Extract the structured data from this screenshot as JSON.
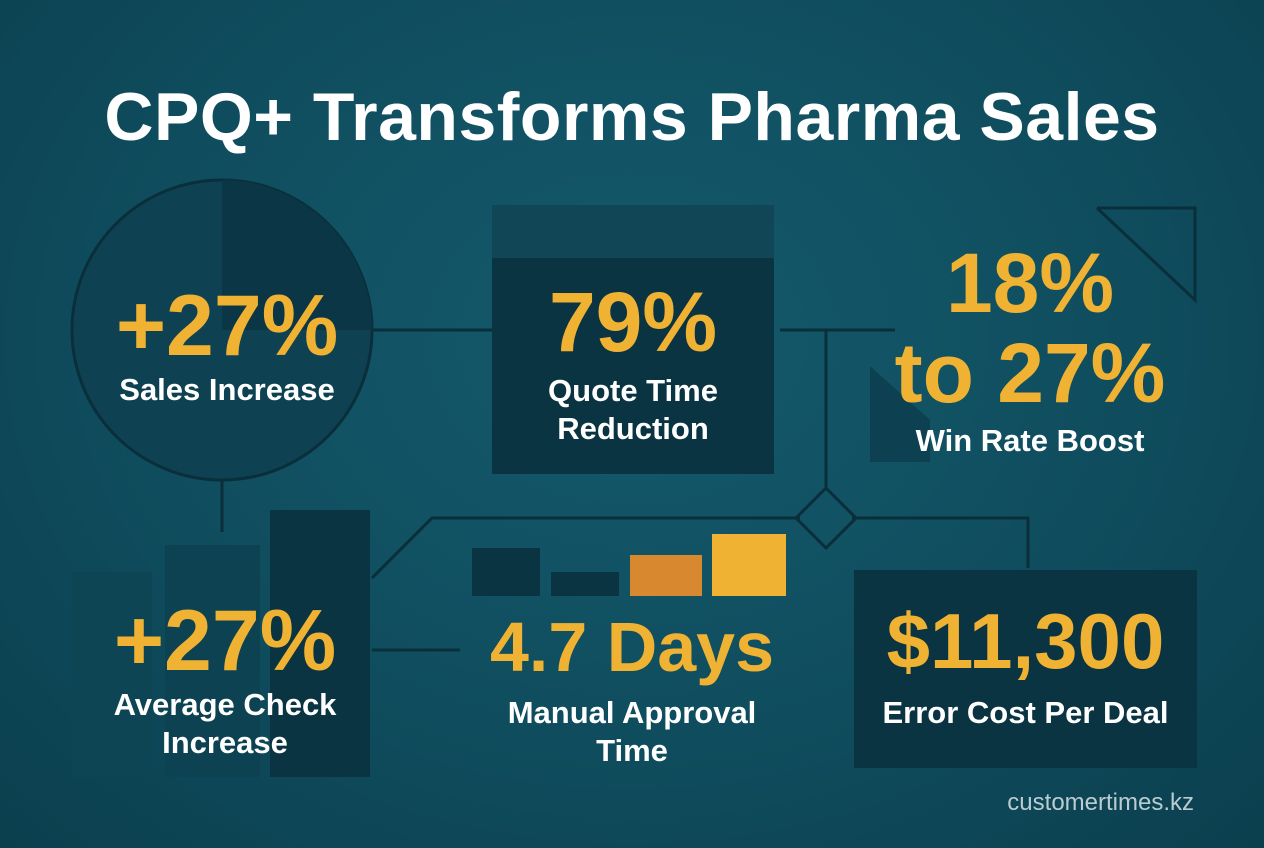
{
  "title": "CPQ+ Transforms Pharma Sales",
  "metrics": {
    "sales": {
      "value": "+27%",
      "label": "Sales Increase"
    },
    "quote": {
      "value": "79%",
      "label_line1": "Quote Time",
      "label_line2": "Reduction"
    },
    "winrate": {
      "value_line1": "18%",
      "value_line2": "to 27%",
      "label": "Win Rate Boost"
    },
    "check": {
      "value": "+27%",
      "label_line1": "Average Check",
      "label_line2": "Increase"
    },
    "approval": {
      "value": "4.7 Days",
      "label_line1": "Manual Approval",
      "label_line2": "Time"
    },
    "error": {
      "value": "$11,300",
      "label": "Error Cost Per Deal"
    }
  },
  "footer": "customertimes.kz",
  "colors": {
    "background": "#0f4d5e",
    "dark_panel": "#0b3443",
    "accent": "#f0b233",
    "accent_orange": "#d8892f",
    "text": "#ffffff"
  }
}
